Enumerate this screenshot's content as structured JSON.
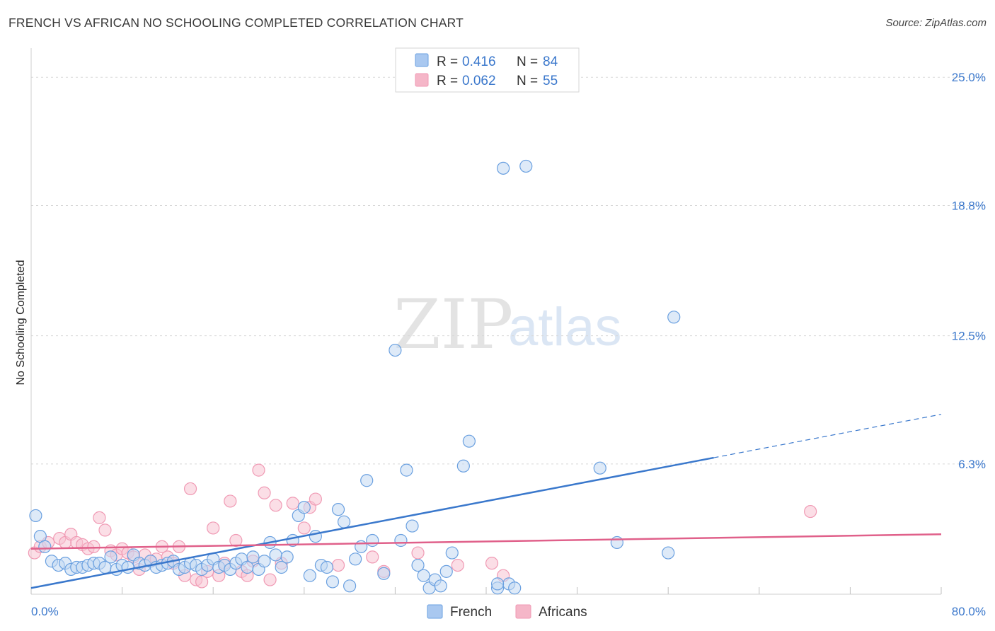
{
  "title": "FRENCH VS AFRICAN NO SCHOOLING COMPLETED CORRELATION CHART",
  "source": "Source: ZipAtlas.com",
  "watermark": {
    "zip": "ZIP",
    "atlas": "atlas"
  },
  "legend": {
    "r_label": "R =",
    "n_label": "N =",
    "french": {
      "r": "0.416",
      "n": "84",
      "color": "#a9c8f0"
    },
    "africans": {
      "r": "0.062",
      "n": "55",
      "color": "#f5b6c8"
    }
  },
  "bottom_legend": {
    "french": "French",
    "africans": "Africans"
  },
  "chart_data": {
    "type": "scatter",
    "ylabel": "No Schooling Completed",
    "x_range": [
      0,
      80
    ],
    "y_range": [
      0,
      26
    ],
    "x_tick_labels": [
      "0.0%",
      "80.0%"
    ],
    "y_ticks": [
      {
        "value": 6.3,
        "label": "6.3%"
      },
      {
        "value": 12.5,
        "label": "12.5%"
      },
      {
        "value": 18.8,
        "label": "18.8%"
      },
      {
        "value": 25.0,
        "label": "25.0%"
      }
    ],
    "series": [
      {
        "name": "French",
        "color": "#6aa0e0",
        "trend": {
          "x0": 0,
          "y0": 0.3,
          "x1": 60,
          "y1": 6.6,
          "dash_to_x": 80,
          "dash_to_y": 8.7,
          "color": "#3a78cc"
        },
        "points": [
          [
            0.4,
            3.8
          ],
          [
            0.8,
            2.8
          ],
          [
            1.2,
            2.3
          ],
          [
            1.8,
            1.6
          ],
          [
            2.4,
            1.4
          ],
          [
            3.0,
            1.5
          ],
          [
            3.5,
            1.2
          ],
          [
            4.0,
            1.3
          ],
          [
            4.5,
            1.3
          ],
          [
            5.0,
            1.4
          ],
          [
            5.5,
            1.5
          ],
          [
            6.0,
            1.5
          ],
          [
            6.5,
            1.3
          ],
          [
            7.0,
            1.8
          ],
          [
            7.5,
            1.2
          ],
          [
            8.0,
            1.4
          ],
          [
            8.5,
            1.3
          ],
          [
            9.0,
            1.9
          ],
          [
            9.5,
            1.5
          ],
          [
            10.0,
            1.4
          ],
          [
            10.5,
            1.6
          ],
          [
            11.0,
            1.3
          ],
          [
            11.5,
            1.4
          ],
          [
            12.0,
            1.5
          ],
          [
            12.5,
            1.6
          ],
          [
            13.0,
            1.2
          ],
          [
            13.5,
            1.3
          ],
          [
            14.0,
            1.5
          ],
          [
            14.5,
            1.4
          ],
          [
            15.0,
            1.2
          ],
          [
            15.5,
            1.4
          ],
          [
            16.0,
            1.7
          ],
          [
            16.5,
            1.3
          ],
          [
            17.0,
            1.4
          ],
          [
            17.5,
            1.2
          ],
          [
            18.0,
            1.5
          ],
          [
            18.5,
            1.7
          ],
          [
            19.0,
            1.3
          ],
          [
            19.5,
            1.8
          ],
          [
            20.0,
            1.2
          ],
          [
            20.5,
            1.6
          ],
          [
            21.0,
            2.5
          ],
          [
            21.5,
            1.9
          ],
          [
            22.0,
            1.3
          ],
          [
            22.5,
            1.8
          ],
          [
            23.0,
            2.6
          ],
          [
            23.5,
            3.8
          ],
          [
            24.0,
            4.2
          ],
          [
            24.5,
            0.9
          ],
          [
            25.0,
            2.8
          ],
          [
            25.5,
            1.4
          ],
          [
            26.0,
            1.3
          ],
          [
            26.5,
            0.6
          ],
          [
            27.0,
            4.1
          ],
          [
            27.5,
            3.5
          ],
          [
            28.0,
            0.4
          ],
          [
            28.5,
            1.7
          ],
          [
            29.0,
            2.3
          ],
          [
            29.5,
            5.5
          ],
          [
            30.0,
            2.6
          ],
          [
            31.0,
            1.0
          ],
          [
            32.0,
            11.8
          ],
          [
            32.5,
            2.6
          ],
          [
            33.0,
            6.0
          ],
          [
            33.5,
            3.3
          ],
          [
            34.0,
            1.4
          ],
          [
            34.5,
            0.9
          ],
          [
            35.0,
            0.3
          ],
          [
            35.5,
            0.7
          ],
          [
            36.0,
            0.4
          ],
          [
            37.0,
            2.0
          ],
          [
            38.0,
            6.2
          ],
          [
            38.5,
            7.4
          ],
          [
            41.0,
            0.3
          ],
          [
            42.0,
            0.5
          ],
          [
            42.5,
            0.3
          ],
          [
            41.5,
            20.6
          ],
          [
            43.5,
            20.7
          ],
          [
            50.0,
            6.1
          ],
          [
            51.5,
            2.5
          ],
          [
            56.0,
            2.0
          ],
          [
            56.5,
            13.4
          ],
          [
            41.0,
            0.5
          ],
          [
            36.5,
            1.1
          ]
        ]
      },
      {
        "name": "Africans",
        "color": "#f09ab4",
        "trend": {
          "x0": 0,
          "y0": 2.2,
          "x1": 80,
          "y1": 2.9,
          "color": "#e0608a"
        },
        "points": [
          [
            0.3,
            2.0
          ],
          [
            0.8,
            2.3
          ],
          [
            1.5,
            2.5
          ],
          [
            2.5,
            2.7
          ],
          [
            3.0,
            2.5
          ],
          [
            3.5,
            2.9
          ],
          [
            4.0,
            2.5
          ],
          [
            4.5,
            2.4
          ],
          [
            5.0,
            2.2
          ],
          [
            5.5,
            2.3
          ],
          [
            6.0,
            3.7
          ],
          [
            6.5,
            3.1
          ],
          [
            7.0,
            2.1
          ],
          [
            7.5,
            1.9
          ],
          [
            8.0,
            2.2
          ],
          [
            8.5,
            2.0
          ],
          [
            9.0,
            1.8
          ],
          [
            9.5,
            1.2
          ],
          [
            10.0,
            1.9
          ],
          [
            10.5,
            1.6
          ],
          [
            11.0,
            1.7
          ],
          [
            11.5,
            2.3
          ],
          [
            12.0,
            1.8
          ],
          [
            12.5,
            1.5
          ],
          [
            13.0,
            2.3
          ],
          [
            13.5,
            0.9
          ],
          [
            14.0,
            5.1
          ],
          [
            14.5,
            0.7
          ],
          [
            15.0,
            0.6
          ],
          [
            15.5,
            1.1
          ],
          [
            16.0,
            3.2
          ],
          [
            16.5,
            0.9
          ],
          [
            17.0,
            1.5
          ],
          [
            17.5,
            4.5
          ],
          [
            18.0,
            2.6
          ],
          [
            18.5,
            1.1
          ],
          [
            19.0,
            0.9
          ],
          [
            19.5,
            1.6
          ],
          [
            20.0,
            6.0
          ],
          [
            20.5,
            4.9
          ],
          [
            21.0,
            0.7
          ],
          [
            21.5,
            4.3
          ],
          [
            22.0,
            1.5
          ],
          [
            23.0,
            4.4
          ],
          [
            24.0,
            3.2
          ],
          [
            24.5,
            4.2
          ],
          [
            25.0,
            4.6
          ],
          [
            27.0,
            1.4
          ],
          [
            30.0,
            1.8
          ],
          [
            31.0,
            1.1
          ],
          [
            34.0,
            2.0
          ],
          [
            37.5,
            1.4
          ],
          [
            40.5,
            1.5
          ],
          [
            41.5,
            0.9
          ],
          [
            68.5,
            4.0
          ]
        ]
      }
    ]
  }
}
